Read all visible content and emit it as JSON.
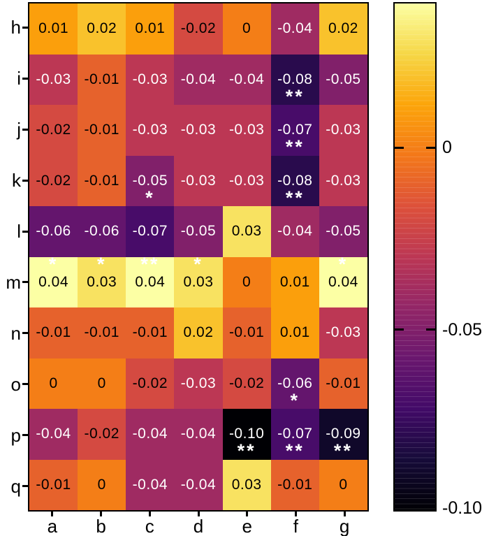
{
  "chart_data": {
    "type": "heatmap",
    "x_labels": [
      "a",
      "b",
      "c",
      "d",
      "e",
      "f",
      "g"
    ],
    "y_labels": [
      "h",
      "i",
      "j",
      "k",
      "l",
      "m",
      "n",
      "o",
      "p",
      "q"
    ],
    "values": [
      [
        0.01,
        0.02,
        0.01,
        -0.02,
        0,
        -0.04,
        0.02
      ],
      [
        -0.03,
        -0.01,
        -0.03,
        -0.04,
        -0.04,
        -0.08,
        -0.05
      ],
      [
        -0.02,
        -0.01,
        -0.03,
        -0.03,
        -0.03,
        -0.07,
        -0.03
      ],
      [
        -0.02,
        -0.01,
        -0.05,
        -0.03,
        -0.03,
        -0.08,
        -0.03
      ],
      [
        -0.06,
        -0.06,
        -0.07,
        -0.05,
        0.03,
        -0.04,
        -0.05
      ],
      [
        0.04,
        0.03,
        0.04,
        0.03,
        0,
        0.01,
        0.04
      ],
      [
        -0.01,
        -0.01,
        -0.01,
        0.02,
        -0.01,
        0.01,
        -0.03
      ],
      [
        0,
        0,
        -0.02,
        -0.03,
        -0.02,
        -0.06,
        -0.01
      ],
      [
        -0.04,
        -0.02,
        -0.04,
        -0.04,
        -0.1,
        -0.07,
        -0.09
      ],
      [
        -0.01,
        0,
        -0.04,
        -0.04,
        0.03,
        -0.01,
        0
      ]
    ],
    "cell_text": [
      [
        "0.01",
        "0.02",
        "0.01",
        "-0.02",
        "0",
        "-0.04",
        "0.02"
      ],
      [
        "-0.03",
        "-0.01",
        "-0.03",
        "-0.04",
        "-0.04",
        "-0.08",
        "-0.05"
      ],
      [
        "-0.02",
        "-0.01",
        "-0.03",
        "-0.03",
        "-0.03",
        "-0.07",
        "-0.03"
      ],
      [
        "-0.02",
        "-0.01",
        "-0.05",
        "-0.03",
        "-0.03",
        "-0.08",
        "-0.03"
      ],
      [
        "-0.06",
        "-0.06",
        "-0.07",
        "-0.05",
        "0.03",
        "-0.04",
        "-0.05"
      ],
      [
        "0.04",
        "0.03",
        "0.04",
        "0.03",
        "0",
        "0.01",
        "0.04"
      ],
      [
        "-0.01",
        "-0.01",
        "-0.01",
        "0.02",
        "-0.01",
        "0.01",
        "-0.03"
      ],
      [
        "0",
        "0",
        "-0.02",
        "-0.03",
        "-0.02",
        "-0.06",
        "-0.01"
      ],
      [
        "-0.04",
        "-0.02",
        "-0.04",
        "-0.04",
        "-0.10",
        "-0.07",
        "-0.09"
      ],
      [
        "-0.01",
        "0",
        "-0.04",
        "-0.04",
        "0.03",
        "-0.01",
        "0"
      ]
    ],
    "significance": [
      [
        "",
        "",
        "",
        "",
        "",
        "",
        ""
      ],
      [
        "",
        "",
        "",
        "",
        "",
        "**",
        ""
      ],
      [
        "",
        "",
        "",
        "",
        "",
        "**",
        ""
      ],
      [
        "",
        "",
        "*",
        "",
        "",
        "**",
        ""
      ],
      [
        "",
        "",
        "",
        "",
        "",
        "",
        ""
      ],
      [
        "*",
        "*",
        "**",
        "*",
        "",
        "",
        "*"
      ],
      [
        "",
        "",
        "",
        "",
        "",
        "",
        ""
      ],
      [
        "",
        "",
        "",
        "",
        "",
        "*",
        ""
      ],
      [
        "",
        "",
        "",
        "",
        "**",
        "**",
        "**"
      ],
      [
        "",
        "",
        "",
        "",
        "",
        "",
        ""
      ]
    ],
    "significance_side": [
      "below",
      "below",
      "below",
      "below",
      "below",
      "above",
      "below",
      "below",
      "below",
      "below"
    ],
    "significance_color": "#ffffff",
    "colormap": {
      "name": "inferno",
      "vmin": -0.1,
      "vmax": 0.04,
      "stops": [
        [
          0.0,
          "#000004"
        ],
        [
          0.1,
          "#160b39"
        ],
        [
          0.2,
          "#420a68"
        ],
        [
          0.3,
          "#6a176e"
        ],
        [
          0.4,
          "#932667"
        ],
        [
          0.5,
          "#bc3754"
        ],
        [
          0.6,
          "#dd513a"
        ],
        [
          0.7,
          "#f37819"
        ],
        [
          0.8,
          "#fca50a"
        ],
        [
          0.9,
          "#f6d746"
        ],
        [
          1.0,
          "#fcffa4"
        ]
      ]
    },
    "text_colors": {
      "dark": "#000000",
      "light": "#ffffff"
    },
    "axis_color": "#000000",
    "grid": false,
    "legend_position": "right-colorbar",
    "colorbar": {
      "ticks": [
        {
          "label": "0",
          "value": 0,
          "show_dash": true
        },
        {
          "label": "-0.05",
          "value": -0.05,
          "show_dash": true
        },
        {
          "label": "-0.10",
          "value": -0.1,
          "show_dash": false
        }
      ]
    }
  }
}
